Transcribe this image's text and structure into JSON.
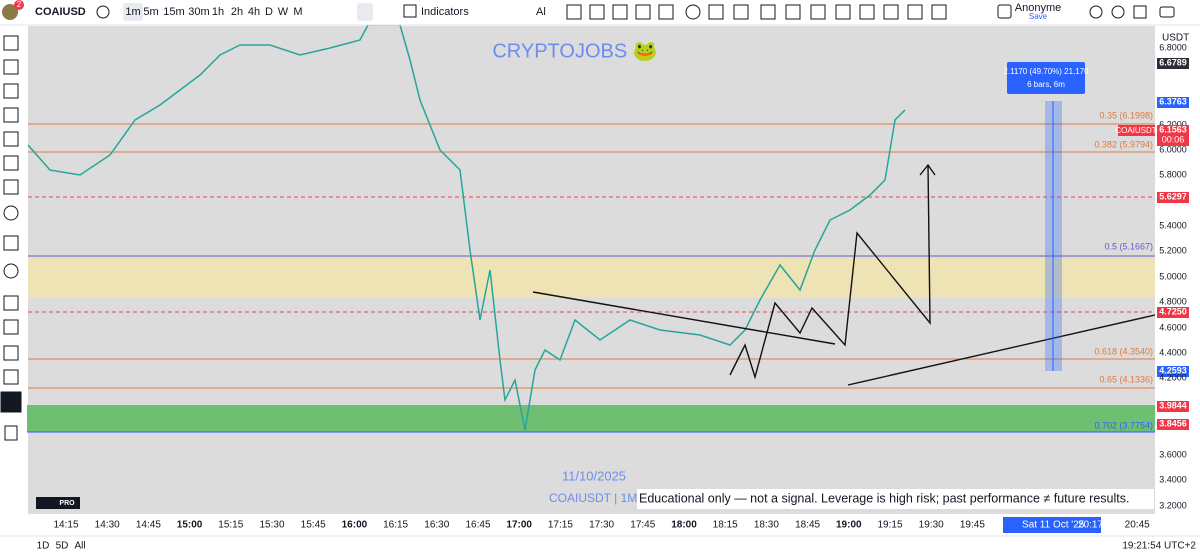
{
  "toolbar": {
    "symbol": "COAIUSD",
    "badge": "2",
    "intervals": [
      "1m",
      "5m",
      "15m",
      "30m",
      "1h",
      "2h",
      "4h",
      "D",
      "W",
      "M"
    ],
    "indicators": "Indicators",
    "alert": "Al",
    "user": "Anonyme",
    "save": "Save"
  },
  "price_axis": {
    "currency": "USDT",
    "labels": [
      "6.8000",
      "6.6789",
      "6.3763",
      "6.2000",
      "6.1563",
      "6.0000",
      "5.8000",
      "5.6297",
      "5.4000",
      "5.2000",
      "5.0000",
      "4.8000",
      "4.7250",
      "4.6000",
      "4.4000",
      "4.2593",
      "4.2000",
      "3.9844",
      "3.8456",
      "3.6000",
      "3.4000",
      "3.2000"
    ],
    "countdown": "00:06"
  },
  "time_axis": {
    "labels": [
      "14:15",
      "14:30",
      "14:45",
      "15:00",
      "15:15",
      "15:30",
      "15:45",
      "16:00",
      "16:15",
      "16:30",
      "16:45",
      "17:00",
      "17:15",
      "17:30",
      "17:45",
      "18:00",
      "18:15",
      "18:30",
      "18:45",
      "19:00",
      "19:15",
      "19:30",
      "19:45",
      "20:45"
    ],
    "cursor": "Sat 11 Oct '25",
    "cursor_time": "20:17"
  },
  "chart": {
    "watermark": "CRYPTOJOBS 🐸",
    "fib_labels": [
      "0.35 (6.1998)",
      "0.382 (5.9794)",
      "0.5 (5.1667)",
      "0.618 (4.3540)",
      "0.65 (4.1336)",
      "0.702 (3.7754)"
    ],
    "symbol_tag": "COAIUSDT",
    "measure": {
      "line1": "2.1170 (49.70%) 21,170",
      "line2": "6 bars, 6m"
    },
    "date_label": "11/10/2025",
    "symbol_interval": "COAIUSDT | 1M",
    "disclaimer": "Educational only — not a signal. Leverage is high risk; past performance ≠ future results.",
    "logo_badge": "PRO"
  },
  "bottom_bar": {
    "ranges": [
      "1D",
      "5D",
      "All"
    ],
    "clock": "19:21:54 UTC+2"
  }
}
